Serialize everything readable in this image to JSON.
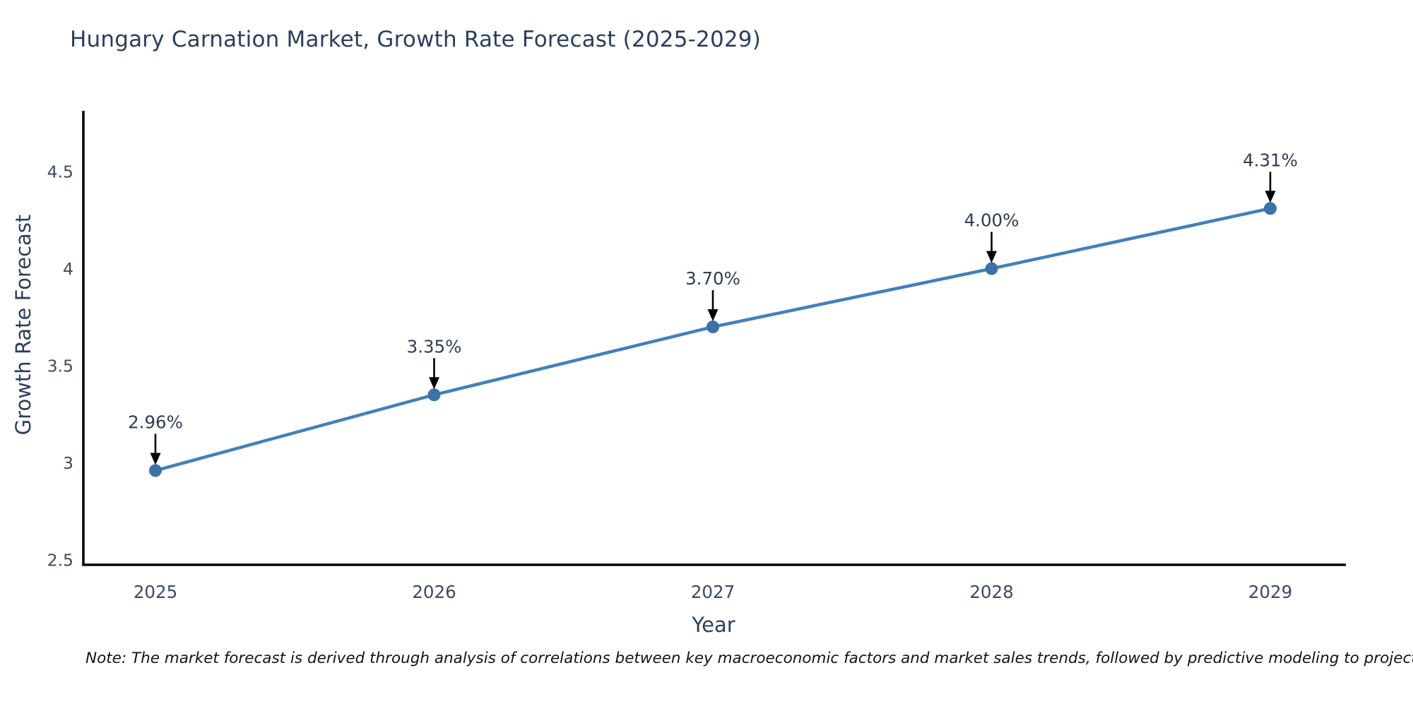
{
  "title": "Hungary Carnation Market, Growth Rate Forecast (2025-2029)",
  "note": "Note: The market forecast is derived through analysis of correlations between key macroeconomic factors and market sales trends, followed by predictive modeling to project future sales",
  "chart_data": {
    "type": "line",
    "title": "Hungary Carnation Market, Growth Rate Forecast (2025-2029)",
    "xlabel": "Year",
    "ylabel": "Growth Rate Forecast",
    "x": [
      2025,
      2026,
      2027,
      2028,
      2029
    ],
    "xtick_labels": [
      "2025",
      "2026",
      "2027",
      "2028",
      "2029"
    ],
    "series": [
      {
        "name": "Growth Rate Forecast",
        "values": [
          2.96,
          3.35,
          3.7,
          4.0,
          4.31
        ]
      }
    ],
    "point_labels": [
      "2.96%",
      "3.35%",
      "3.70%",
      "4.00%",
      "4.31%"
    ],
    "yticks": [
      2.5,
      3,
      3.5,
      4,
      4.5
    ],
    "ytick_labels": [
      "2.5",
      "3",
      "3.5",
      "4",
      "4.5"
    ],
    "ylim": [
      2.45,
      4.8
    ],
    "grid": false,
    "legend": "none",
    "annotation_style": "value label above each point with black arrow pointing down to marker",
    "colors": {
      "line": "#4380ba",
      "marker": "#3a72ab",
      "axis": "#000000",
      "tick_text": "#3b4a63",
      "annotation_text": "#2f3d52",
      "annotation_arrow": "#000000",
      "title_text": "#2a3f5f"
    }
  }
}
